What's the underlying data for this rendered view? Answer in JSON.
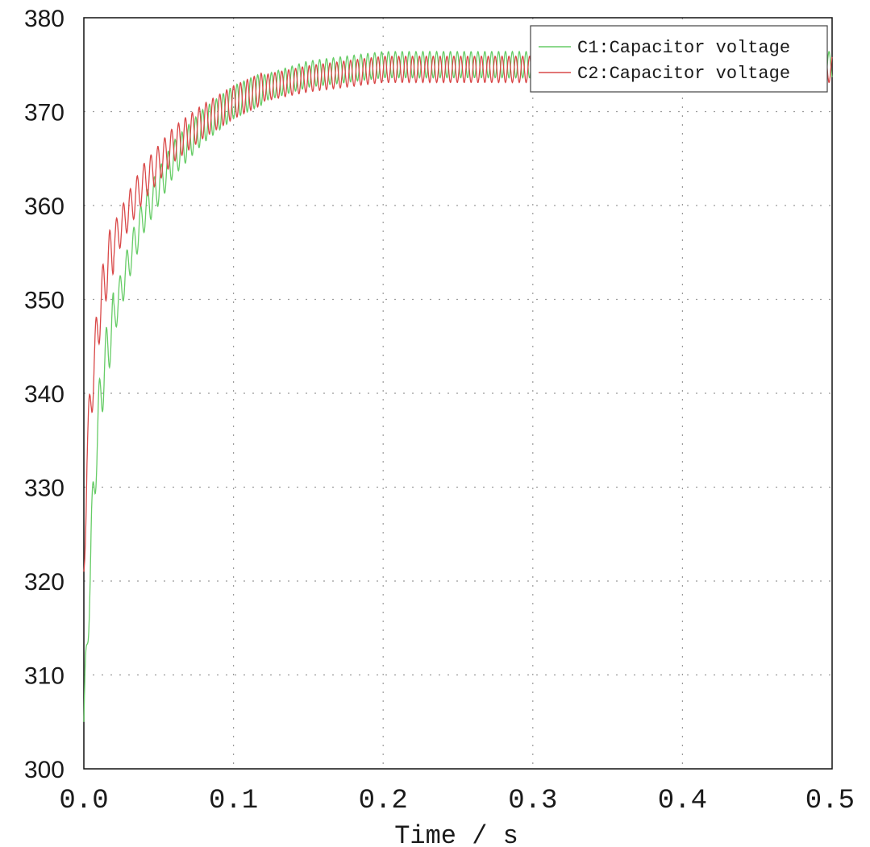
{
  "chart_data": {
    "type": "line",
    "title": "",
    "xlabel": "Time / s",
    "ylabel": "",
    "xlim": [
      0.0,
      0.5
    ],
    "ylim": [
      300,
      380
    ],
    "xticks": [
      "0.0",
      "0.1",
      "0.2",
      "0.3",
      "0.4",
      "0.5"
    ],
    "yticks": [
      "300",
      "310",
      "320",
      "330",
      "340",
      "350",
      "360",
      "370",
      "380"
    ],
    "grid": true,
    "legend_position": "top-right",
    "colors": {
      "C1": "#66cc66",
      "C2": "#d94848",
      "grid": "#9a9a9a",
      "axis": "#111111"
    },
    "series": [
      {
        "name": "C1:Capacitor voltage",
        "x": [
          0.0,
          0.002,
          0.005,
          0.01,
          0.015,
          0.02,
          0.03,
          0.04,
          0.05,
          0.06,
          0.08,
          0.1,
          0.12,
          0.15,
          0.2,
          0.25,
          0.3,
          0.4,
          0.5
        ],
        "y": [
          305,
          312,
          325,
          338,
          344,
          348,
          354,
          359,
          362,
          365,
          368.5,
          371,
          372.5,
          374,
          375,
          375,
          375,
          375,
          375
        ]
      },
      {
        "name": "C2:Capacitor voltage",
        "x": [
          0.0,
          0.002,
          0.005,
          0.01,
          0.015,
          0.02,
          0.03,
          0.04,
          0.05,
          0.06,
          0.08,
          0.1,
          0.12,
          0.15,
          0.2,
          0.25,
          0.3,
          0.4,
          0.5
        ],
        "y": [
          321,
          333,
          340,
          348,
          353,
          356,
          359.5,
          362.5,
          364.5,
          366.5,
          369,
          371,
          372.5,
          373.5,
          374.5,
          374.5,
          374.5,
          374.5,
          374.5
        ]
      }
    ]
  }
}
